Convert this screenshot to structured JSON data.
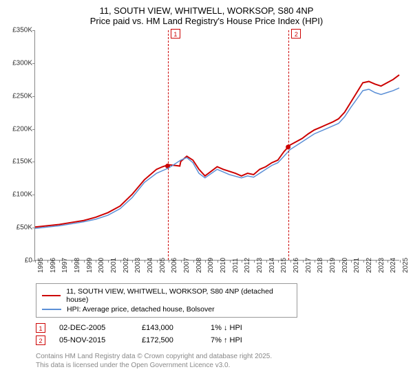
{
  "title": "11, SOUTH VIEW, WHITWELL, WORKSOP, S80 4NP",
  "subtitle": "Price paid vs. HM Land Registry's House Price Index (HPI)",
  "chart": {
    "type": "line",
    "background_color": "#ffffff",
    "ylim": [
      0,
      350
    ],
    "ytick_step": 50,
    "ytick_suffix": "K",
    "ytick_prefix": "£",
    "xlim": [
      1995,
      2025
    ],
    "xtick_step": 1,
    "grid": false,
    "series": [
      {
        "name": "11, SOUTH VIEW, WHITWELL, WORKSOP, S80 4NP (detached house)",
        "color": "#cc0000",
        "line_width": 2,
        "data": [
          [
            1995,
            50
          ],
          [
            1996,
            52
          ],
          [
            1997,
            54
          ],
          [
            1998,
            57
          ],
          [
            1999,
            60
          ],
          [
            2000,
            65
          ],
          [
            2001,
            72
          ],
          [
            2002,
            82
          ],
          [
            2003,
            100
          ],
          [
            2004,
            122
          ],
          [
            2005,
            138
          ],
          [
            2005.5,
            142
          ],
          [
            2006,
            145
          ],
          [
            2006.92,
            143
          ],
          [
            2007,
            150
          ],
          [
            2007.5,
            158
          ],
          [
            2008,
            152
          ],
          [
            2008.5,
            138
          ],
          [
            2009,
            128
          ],
          [
            2009.5,
            135
          ],
          [
            2010,
            142
          ],
          [
            2010.5,
            138
          ],
          [
            2011,
            135
          ],
          [
            2011.5,
            132
          ],
          [
            2012,
            128
          ],
          [
            2012.5,
            132
          ],
          [
            2013,
            130
          ],
          [
            2013.5,
            138
          ],
          [
            2014,
            142
          ],
          [
            2014.5,
            148
          ],
          [
            2015,
            152
          ],
          [
            2015.5,
            165
          ],
          [
            2015.85,
            172
          ],
          [
            2016,
            175
          ],
          [
            2016.5,
            180
          ],
          [
            2017,
            185
          ],
          [
            2017.5,
            192
          ],
          [
            2018,
            198
          ],
          [
            2018.5,
            202
          ],
          [
            2019,
            206
          ],
          [
            2019.5,
            210
          ],
          [
            2020,
            215
          ],
          [
            2020.5,
            225
          ],
          [
            2021,
            240
          ],
          [
            2021.5,
            255
          ],
          [
            2022,
            270
          ],
          [
            2022.5,
            272
          ],
          [
            2023,
            268
          ],
          [
            2023.5,
            265
          ],
          [
            2024,
            270
          ],
          [
            2024.5,
            275
          ],
          [
            2025,
            282
          ]
        ],
        "dots": [
          [
            2005.92,
            143
          ],
          [
            2015.85,
            172
          ]
        ]
      },
      {
        "name": "HPI: Average price, detached house, Bolsover",
        "color": "#5b8fd6",
        "line_width": 1.5,
        "data": [
          [
            1995,
            48
          ],
          [
            1996,
            50
          ],
          [
            1997,
            52
          ],
          [
            1998,
            55
          ],
          [
            1999,
            58
          ],
          [
            2000,
            62
          ],
          [
            2001,
            68
          ],
          [
            2002,
            78
          ],
          [
            2003,
            95
          ],
          [
            2004,
            118
          ],
          [
            2005,
            132
          ],
          [
            2006,
            140
          ],
          [
            2007,
            152
          ],
          [
            2007.5,
            156
          ],
          [
            2008,
            148
          ],
          [
            2008.5,
            132
          ],
          [
            2009,
            125
          ],
          [
            2010,
            138
          ],
          [
            2010.5,
            134
          ],
          [
            2011,
            130
          ],
          [
            2012,
            125
          ],
          [
            2012.5,
            128
          ],
          [
            2013,
            126
          ],
          [
            2014,
            138
          ],
          [
            2014.5,
            144
          ],
          [
            2015,
            148
          ],
          [
            2015.5,
            158
          ],
          [
            2016,
            168
          ],
          [
            2016.5,
            174
          ],
          [
            2017,
            180
          ],
          [
            2018,
            192
          ],
          [
            2019,
            200
          ],
          [
            2020,
            208
          ],
          [
            2020.5,
            218
          ],
          [
            2021,
            232
          ],
          [
            2021.5,
            245
          ],
          [
            2022,
            258
          ],
          [
            2022.5,
            260
          ],
          [
            2023,
            255
          ],
          [
            2023.5,
            252
          ],
          [
            2024,
            255
          ],
          [
            2024.5,
            258
          ],
          [
            2025,
            262
          ]
        ]
      }
    ],
    "markers": [
      {
        "n": "1",
        "x": 2005.92,
        "color": "#cc0000",
        "date": "02-DEC-2005",
        "price": "£143,000",
        "hpi": "1% ↓ HPI"
      },
      {
        "n": "2",
        "x": 2015.85,
        "color": "#cc0000",
        "date": "05-NOV-2015",
        "price": "£172,500",
        "hpi": "7% ↑ HPI"
      }
    ]
  },
  "legend": {
    "border_color": "#999999"
  },
  "footer": {
    "line1": "Contains HM Land Registry data © Crown copyright and database right 2025.",
    "line2": "This data is licensed under the Open Government Licence v3.0."
  }
}
